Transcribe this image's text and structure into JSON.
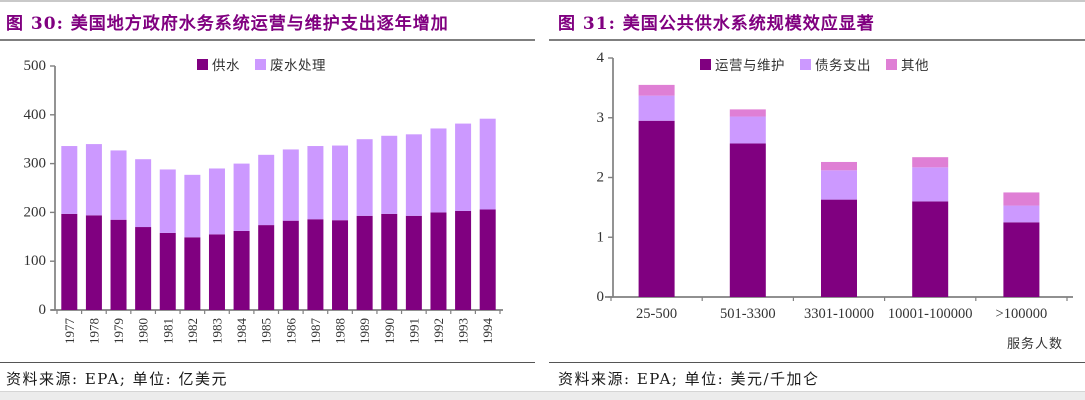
{
  "chart_data": [
    {
      "id": "fig30",
      "type": "bar",
      "stacked": true,
      "title": "图 30: 美国地方政府水务系统运营与维护支出逐年增加",
      "source": "资料来源: EPA; 单位: 亿美元",
      "categories": [
        "1977",
        "1978",
        "1979",
        "1980",
        "1981",
        "1982",
        "1983",
        "1984",
        "1985",
        "1986",
        "1987",
        "1988",
        "1989",
        "1990",
        "1991",
        "1992",
        "1993",
        "1994"
      ],
      "series": [
        {
          "name": "供水",
          "color": "#800080",
          "values": [
            197,
            194,
            185,
            170,
            158,
            149,
            155,
            162,
            174,
            183,
            186,
            184,
            193,
            197,
            193,
            200,
            203,
            206
          ]
        },
        {
          "name": "废水处理",
          "color": "#CC99FF",
          "values": [
            139,
            146,
            142,
            139,
            130,
            128,
            135,
            138,
            144,
            146,
            150,
            153,
            157,
            160,
            167,
            172,
            179,
            186
          ]
        }
      ],
      "ylim": [
        0,
        500
      ],
      "ytick_step": 100,
      "xlabel": "",
      "ylabel": "",
      "legend_position": "top-center",
      "grid": false
    },
    {
      "id": "fig31",
      "type": "bar",
      "stacked": true,
      "title": "图 31:  美国公共供水系统规模效应显著",
      "source": "资料来源: EPA; 单位: 美元/千加仑",
      "categories": [
        "25-500",
        "501-3300",
        "3301-10000",
        "10001-100000",
        ">100000"
      ],
      "series": [
        {
          "name": "运营与维护",
          "color": "#800080",
          "values": [
            2.95,
            2.57,
            1.63,
            1.6,
            1.25
          ]
        },
        {
          "name": "债务支出",
          "color": "#CC99FF",
          "values": [
            0.42,
            0.45,
            0.49,
            0.57,
            0.28
          ]
        },
        {
          "name": "其他",
          "color": "#DF7FD5",
          "values": [
            0.18,
            0.12,
            0.14,
            0.17,
            0.22
          ]
        }
      ],
      "ylim": [
        0,
        4
      ],
      "ytick_step": 1,
      "xlabel": "服务人数",
      "ylabel": "",
      "legend_position": "top-center",
      "grid": false
    }
  ]
}
